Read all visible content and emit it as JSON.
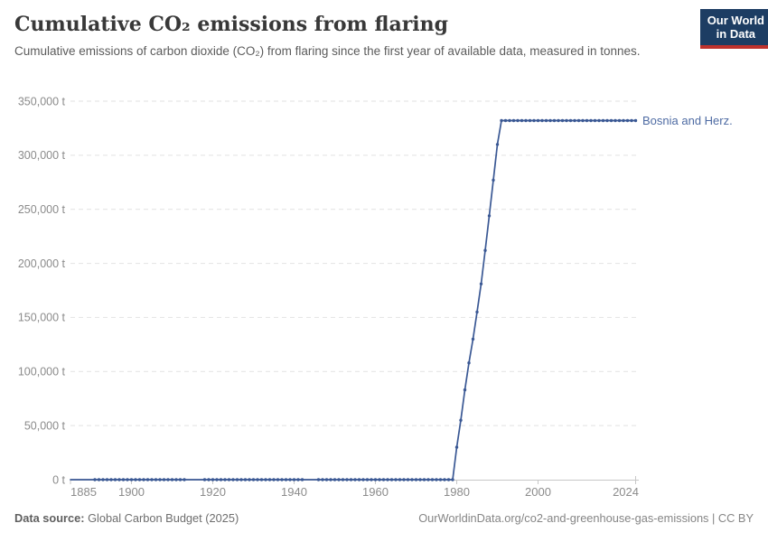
{
  "header": {
    "title": "Cumulative CO₂ emissions from flaring",
    "subtitle": "Cumulative emissions of carbon dioxide (CO₂) from flaring since the first year of available data, measured in tonnes.",
    "logo": {
      "line1": "Our World",
      "line2": "in Data"
    }
  },
  "footer": {
    "source_label": "Data source:",
    "source_value": "Global Carbon Budget (2025)",
    "rights": "OurWorldinData.org/co2-and-greenhouse-gas-emissions | CC BY"
  },
  "colors": {
    "series": "#3a5894",
    "series_label": "#4e6ba3",
    "grid": "#e2e2e2",
    "axis": "#c7c7c7",
    "tick_label": "#8b8b8b",
    "title": "#383838",
    "subtitle": "#5b5b5b",
    "footer": "#6e6e6e",
    "logo_bg": "#1d3d63",
    "logo_red": "#be322d"
  },
  "chart_data": {
    "type": "line",
    "title": "Cumulative CO₂ emissions from flaring",
    "series_name": "Bosnia and Herz.",
    "unit": "t",
    "xlabel": "",
    "ylabel": "",
    "x_range": [
      1885,
      2024
    ],
    "ylim": [
      0,
      350000
    ],
    "grid": "dashed-horizontal",
    "legend_position": "right-of-line",
    "x_tick_labels": [
      "1885",
      "1900",
      "1920",
      "1940",
      "1960",
      "1980",
      "2000",
      "2024"
    ],
    "x_ticks": [
      1885,
      1900,
      1920,
      1940,
      1960,
      1980,
      2000,
      2024
    ],
    "y_ticks": [
      {
        "value": 0,
        "label": "0 t"
      },
      {
        "value": 50000,
        "label": "50,000 t"
      },
      {
        "value": 100000,
        "label": "100,000 t"
      },
      {
        "value": 150000,
        "label": "150,000 t"
      },
      {
        "value": 200000,
        "label": "200,000 t"
      },
      {
        "value": 250000,
        "label": "250,000 t"
      },
      {
        "value": 300000,
        "label": "300,000 t"
      },
      {
        "value": 350000,
        "label": "350,000 t"
      }
    ],
    "marker_gap_years": [
      [
        1885,
        1890
      ],
      [
        1914,
        1917
      ],
      [
        1943,
        1945
      ]
    ],
    "points": [
      [
        1885,
        0
      ],
      [
        1886,
        0
      ],
      [
        1887,
        0
      ],
      [
        1888,
        0
      ],
      [
        1889,
        0
      ],
      [
        1890,
        0
      ],
      [
        1891,
        0
      ],
      [
        1892,
        0
      ],
      [
        1893,
        0
      ],
      [
        1894,
        0
      ],
      [
        1895,
        0
      ],
      [
        1896,
        0
      ],
      [
        1897,
        0
      ],
      [
        1898,
        0
      ],
      [
        1899,
        0
      ],
      [
        1900,
        0
      ],
      [
        1901,
        0
      ],
      [
        1902,
        0
      ],
      [
        1903,
        0
      ],
      [
        1904,
        0
      ],
      [
        1905,
        0
      ],
      [
        1906,
        0
      ],
      [
        1907,
        0
      ],
      [
        1908,
        0
      ],
      [
        1909,
        0
      ],
      [
        1910,
        0
      ],
      [
        1911,
        0
      ],
      [
        1912,
        0
      ],
      [
        1913,
        0
      ],
      [
        1914,
        0
      ],
      [
        1915,
        0
      ],
      [
        1916,
        0
      ],
      [
        1917,
        0
      ],
      [
        1918,
        0
      ],
      [
        1919,
        0
      ],
      [
        1920,
        0
      ],
      [
        1921,
        0
      ],
      [
        1922,
        0
      ],
      [
        1923,
        0
      ],
      [
        1924,
        0
      ],
      [
        1925,
        0
      ],
      [
        1926,
        0
      ],
      [
        1927,
        0
      ],
      [
        1928,
        0
      ],
      [
        1929,
        0
      ],
      [
        1930,
        0
      ],
      [
        1931,
        0
      ],
      [
        1932,
        0
      ],
      [
        1933,
        0
      ],
      [
        1934,
        0
      ],
      [
        1935,
        0
      ],
      [
        1936,
        0
      ],
      [
        1937,
        0
      ],
      [
        1938,
        0
      ],
      [
        1939,
        0
      ],
      [
        1940,
        0
      ],
      [
        1941,
        0
      ],
      [
        1942,
        0
      ],
      [
        1943,
        0
      ],
      [
        1944,
        0
      ],
      [
        1945,
        0
      ],
      [
        1946,
        0
      ],
      [
        1947,
        0
      ],
      [
        1948,
        0
      ],
      [
        1949,
        0
      ],
      [
        1950,
        0
      ],
      [
        1951,
        0
      ],
      [
        1952,
        0
      ],
      [
        1953,
        0
      ],
      [
        1954,
        0
      ],
      [
        1955,
        0
      ],
      [
        1956,
        0
      ],
      [
        1957,
        0
      ],
      [
        1958,
        0
      ],
      [
        1959,
        0
      ],
      [
        1960,
        0
      ],
      [
        1961,
        0
      ],
      [
        1962,
        0
      ],
      [
        1963,
        0
      ],
      [
        1964,
        0
      ],
      [
        1965,
        0
      ],
      [
        1966,
        0
      ],
      [
        1967,
        0
      ],
      [
        1968,
        0
      ],
      [
        1969,
        0
      ],
      [
        1970,
        0
      ],
      [
        1971,
        0
      ],
      [
        1972,
        0
      ],
      [
        1973,
        0
      ],
      [
        1974,
        0
      ],
      [
        1975,
        0
      ],
      [
        1976,
        0
      ],
      [
        1977,
        0
      ],
      [
        1978,
        0
      ],
      [
        1979,
        0
      ],
      [
        1980,
        30000
      ],
      [
        1981,
        55000
      ],
      [
        1982,
        83000
      ],
      [
        1983,
        108000
      ],
      [
        1984,
        130000
      ],
      [
        1985,
        155000
      ],
      [
        1986,
        181000
      ],
      [
        1987,
        212000
      ],
      [
        1988,
        244000
      ],
      [
        1989,
        277000
      ],
      [
        1990,
        310000
      ],
      [
        1991,
        332000
      ],
      [
        1992,
        332000
      ],
      [
        1993,
        332000
      ],
      [
        1994,
        332000
      ],
      [
        1995,
        332000
      ],
      [
        1996,
        332000
      ],
      [
        1997,
        332000
      ],
      [
        1998,
        332000
      ],
      [
        1999,
        332000
      ],
      [
        2000,
        332000
      ],
      [
        2001,
        332000
      ],
      [
        2002,
        332000
      ],
      [
        2003,
        332000
      ],
      [
        2004,
        332000
      ],
      [
        2005,
        332000
      ],
      [
        2006,
        332000
      ],
      [
        2007,
        332000
      ],
      [
        2008,
        332000
      ],
      [
        2009,
        332000
      ],
      [
        2010,
        332000
      ],
      [
        2011,
        332000
      ],
      [
        2012,
        332000
      ],
      [
        2013,
        332000
      ],
      [
        2014,
        332000
      ],
      [
        2015,
        332000
      ],
      [
        2016,
        332000
      ],
      [
        2017,
        332000
      ],
      [
        2018,
        332000
      ],
      [
        2019,
        332000
      ],
      [
        2020,
        332000
      ],
      [
        2021,
        332000
      ],
      [
        2022,
        332000
      ],
      [
        2023,
        332000
      ],
      [
        2024,
        332000
      ]
    ]
  }
}
